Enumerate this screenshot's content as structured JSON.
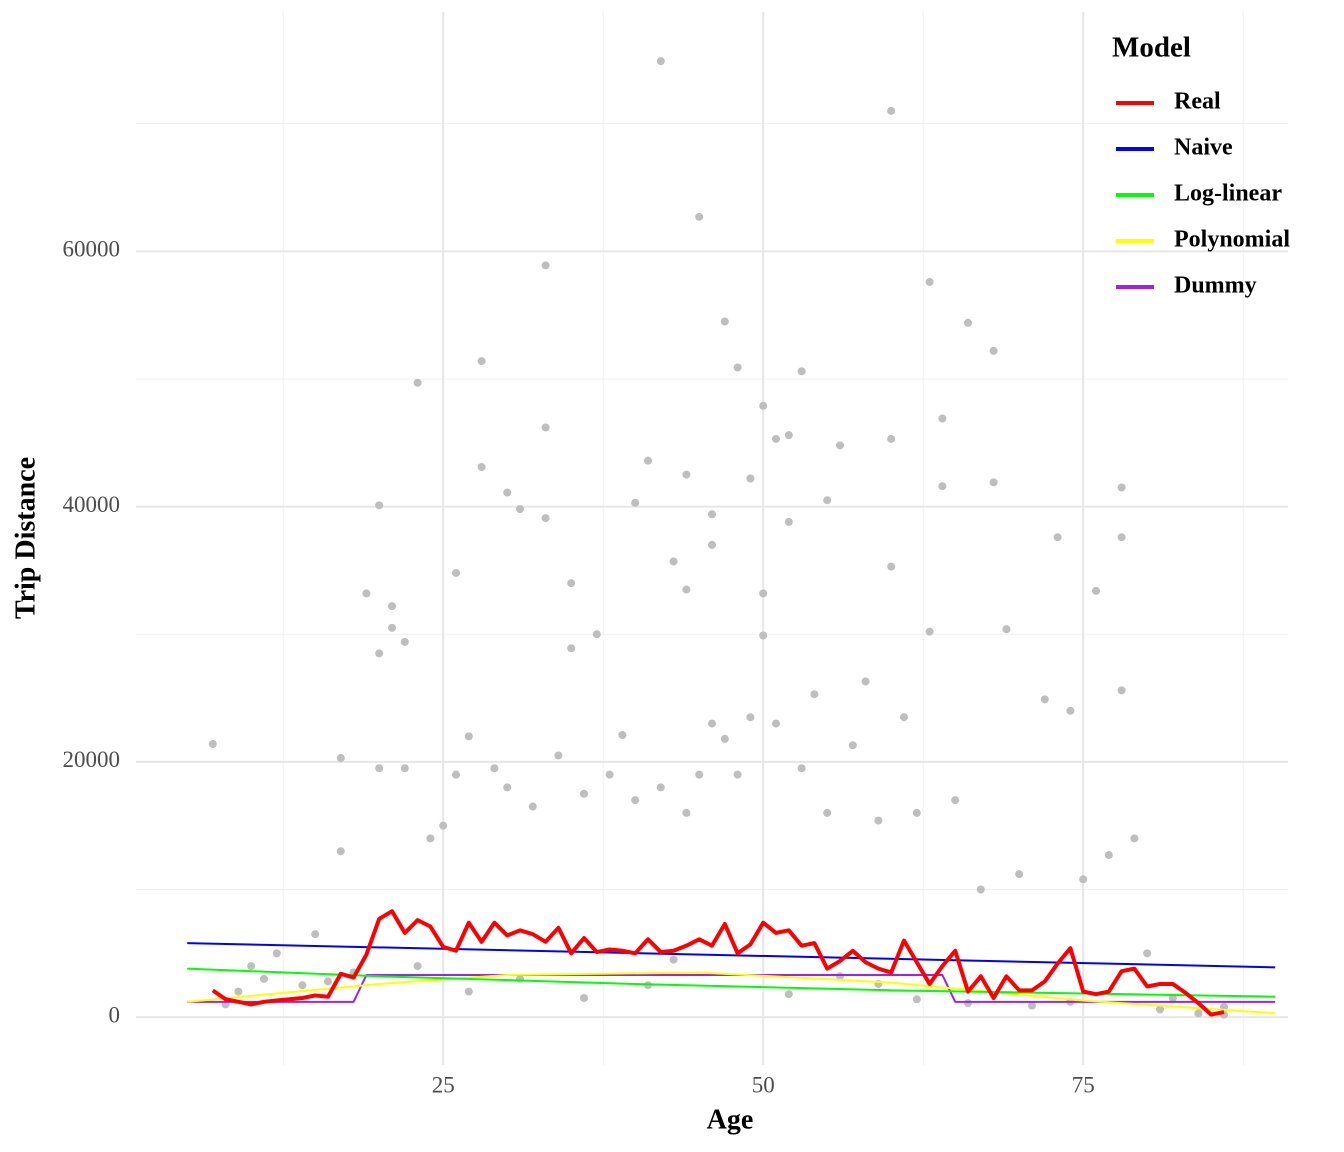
{
  "chart_data": {
    "type": "scatter",
    "x_label": "Age",
    "y_label": "Trip Distance",
    "legend_title": "Model",
    "xlim": [
      1,
      91
    ],
    "ylim": [
      -3750,
      78750
    ],
    "xticks": [
      25,
      50,
      75
    ],
    "yticks": [
      0,
      20000,
      40000,
      60000
    ],
    "x_minor_ticks": [
      12.5,
      37.5,
      62.5,
      87.5
    ],
    "y_minor_ticks": [
      10000,
      30000,
      50000,
      70000
    ],
    "grid": true,
    "legend_position": "top-right",
    "points": {
      "color": "#bebebe",
      "x": [
        7,
        20,
        21,
        22,
        19,
        23,
        26,
        28,
        28,
        30,
        31,
        33,
        33,
        33,
        35,
        37,
        40,
        41,
        42,
        43,
        44,
        44,
        45,
        46,
        46,
        47,
        48,
        49,
        50,
        50,
        50,
        51,
        52,
        52,
        53,
        55,
        56,
        60,
        60,
        60,
        63,
        64,
        64,
        66,
        68,
        68,
        69,
        73,
        74,
        76,
        78,
        78,
        78,
        79,
        82,
        86,
        10,
        12,
        15,
        17,
        17,
        20,
        20,
        21,
        22,
        24,
        25,
        26,
        27,
        29,
        30,
        32,
        34,
        35,
        36,
        38,
        39,
        40,
        42,
        44,
        45,
        46,
        47,
        48,
        49,
        51,
        53,
        54,
        55,
        57,
        58,
        59,
        61,
        62,
        63,
        65,
        67,
        70,
        72,
        75,
        77,
        80,
        8,
        9,
        11,
        14,
        16,
        18,
        23,
        27,
        31,
        36,
        41,
        43,
        52,
        56,
        59,
        62,
        66,
        71,
        74,
        81,
        84,
        86
      ],
      "y": [
        21400,
        40100,
        32200,
        29400,
        33200,
        49700,
        34800,
        51400,
        43100,
        41100,
        39800,
        58900,
        46200,
        39100,
        34000,
        30000,
        40300,
        43600,
        74900,
        35700,
        42500,
        33500,
        62700,
        39400,
        37000,
        54500,
        50900,
        42200,
        47900,
        33200,
        29900,
        45300,
        45600,
        38800,
        50600,
        40500,
        44800,
        71000,
        45300,
        35300,
        57600,
        46900,
        41600,
        54400,
        52200,
        41900,
        30400,
        37600,
        24000,
        33400,
        41500,
        37600,
        25600,
        14000,
        1500,
        800,
        4000,
        5000,
        6500,
        20300,
        13000,
        19500,
        28500,
        30500,
        19500,
        14000,
        15000,
        19000,
        22000,
        19500,
        18000,
        16500,
        20500,
        28900,
        17500,
        19000,
        22100,
        17000,
        18000,
        16000,
        19000,
        23000,
        21800,
        19000,
        23500,
        23000,
        19500,
        25300,
        16000,
        21300,
        26300,
        15400,
        23500,
        16000,
        30200,
        17000,
        10000,
        11200,
        24900,
        10800,
        12700,
        5000,
        1000,
        2000,
        3000,
        2500,
        2800,
        3500,
        4000,
        2000,
        3000,
        1500,
        2500,
        4500,
        1800,
        3200,
        2600,
        1400,
        1100,
        900,
        1200,
        600,
        300,
        200
      ]
    },
    "series": [
      {
        "name": "Real",
        "color": "#ff0000",
        "x": [
          7,
          8,
          9,
          10,
          11,
          12,
          13,
          14,
          15,
          16,
          17,
          18,
          19,
          20,
          21,
          22,
          23,
          24,
          25,
          26,
          27,
          28,
          29,
          30,
          31,
          32,
          33,
          34,
          35,
          36,
          37,
          38,
          39,
          40,
          41,
          42,
          43,
          44,
          45,
          46,
          47,
          48,
          49,
          50,
          51,
          52,
          53,
          54,
          55,
          56,
          57,
          58,
          59,
          60,
          61,
          62,
          63,
          64,
          65,
          66,
          67,
          68,
          69,
          70,
          71,
          72,
          73,
          74,
          75,
          76,
          77,
          78,
          79,
          80,
          81,
          82,
          83,
          84,
          85,
          86
        ],
        "values": [
          2100,
          1400,
          1200,
          1000,
          1200,
          1300,
          1400,
          1500,
          1700,
          1600,
          3400,
          3100,
          4900,
          7700,
          8300,
          6600,
          7600,
          7100,
          5500,
          5200,
          7400,
          5900,
          7400,
          6400,
          6800,
          6500,
          5900,
          7000,
          5000,
          6200,
          5100,
          5300,
          5200,
          5000,
          6100,
          5100,
          5200,
          5600,
          6100,
          5600,
          7300,
          5000,
          5700,
          7400,
          6600,
          6800,
          5600,
          5800,
          3800,
          4400,
          5200,
          4300,
          3800,
          3500,
          6000,
          4300,
          2600,
          4000,
          5200,
          2000,
          3200,
          1500,
          3200,
          2100,
          2100,
          2800,
          4200,
          5400,
          2000,
          1800,
          2000,
          3600,
          3800,
          2400,
          2600,
          2600,
          1900,
          1100,
          200,
          400
        ],
        "width": 4
      },
      {
        "name": "Naive",
        "color": "#0000ff",
        "x": [
          5,
          90
        ],
        "values": [
          5800,
          3900
        ],
        "width": 2
      },
      {
        "name": "Log-linear",
        "color": "#00ff00",
        "x": [
          5,
          20,
          40,
          60,
          90
        ],
        "values": [
          3800,
          3200,
          2600,
          2100,
          1600
        ],
        "width": 2
      },
      {
        "name": "Polynomial",
        "color": "#ffff00",
        "x": [
          5,
          20,
          30,
          45,
          60,
          75,
          90
        ],
        "values": [
          1200,
          2600,
          3300,
          3500,
          2700,
          1300,
          300
        ],
        "width": 2
      },
      {
        "name": "Dummy",
        "color": "#a020f0",
        "x": [
          5,
          18,
          19,
          64,
          65,
          90
        ],
        "values": [
          1200,
          1200,
          3300,
          3300,
          1200,
          1200
        ],
        "width": 2
      }
    ]
  }
}
